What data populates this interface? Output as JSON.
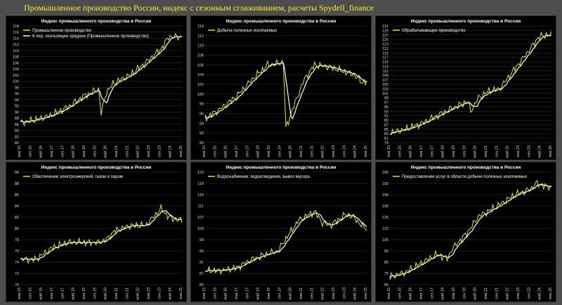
{
  "page_title": "Промышленное производство России, индекс с сезонным сглаживанием, расчеты Spydell_finance",
  "colors": {
    "raw": "#e6e21c",
    "avg": "#ffffff",
    "background": "#000000",
    "page": "#4d4d4d"
  },
  "chart_data": [
    {
      "type": "line",
      "title": "Индекс промышленного производства в России",
      "legend": [
        "Промышленное производство",
        "6 пер. скользящее среднее (Промышленное производство)"
      ],
      "legend_position": "top-left",
      "ylim": [
        80,
        118
      ],
      "yticks": [
        80,
        82,
        84,
        86,
        88,
        90,
        92,
        94,
        96,
        98,
        100,
        102,
        104,
        106,
        108,
        110,
        112,
        114,
        116,
        118
      ],
      "xticks": [
        "янв.15",
        "сен.15",
        "май.16",
        "янв.17",
        "сен.17",
        "май.18",
        "янв.19",
        "сен.19",
        "май.20",
        "янв.21",
        "сен.21",
        "май.22",
        "янв.23",
        "сен.23",
        "май.24",
        "янв.25"
      ],
      "keypoints": [
        [
          0,
          86.5
        ],
        [
          12,
          87.5
        ],
        [
          24,
          89
        ],
        [
          36,
          91.5
        ],
        [
          48,
          95
        ],
        [
          60,
          97.5
        ],
        [
          62,
          89.5
        ],
        [
          66,
          96.5
        ],
        [
          72,
          99.5
        ],
        [
          84,
          102
        ],
        [
          96,
          106
        ],
        [
          108,
          110.5
        ],
        [
          114,
          114.5
        ],
        [
          120,
          114.5
        ],
        [
          124,
          114.5
        ]
      ]
    },
    {
      "type": "line",
      "title": "Индекс промышленного производства в России",
      "legend": [
        "Добыча полезных ископаемых"
      ],
      "legend_position": "top-left",
      "ylim": [
        90,
        114
      ],
      "yticks": [
        90,
        92,
        94,
        96,
        98,
        100,
        102,
        104,
        106,
        108,
        110,
        112,
        114
      ],
      "xticks": [
        "янв.15",
        "сен.15",
        "май.16",
        "янв.17",
        "сен.17",
        "май.18",
        "янв.19",
        "сен.19",
        "май.20",
        "янв.21",
        "сен.21",
        "май.22",
        "янв.23",
        "сен.23",
        "май.24",
        "янв.25"
      ],
      "keypoints": [
        [
          0,
          95
        ],
        [
          12,
          97
        ],
        [
          24,
          99.5
        ],
        [
          36,
          103
        ],
        [
          48,
          106
        ],
        [
          60,
          106.5
        ],
        [
          62,
          93
        ],
        [
          68,
          97.5
        ],
        [
          76,
          103
        ],
        [
          84,
          106
        ],
        [
          96,
          105.5
        ],
        [
          108,
          104.5
        ],
        [
          114,
          104
        ],
        [
          120,
          102.5
        ],
        [
          124,
          102.5
        ]
      ]
    },
    {
      "type": "line",
      "title": "Индекс промышленного производства в России",
      "legend": [
        "Обрабатывающее производство"
      ],
      "legend_position": "top-left",
      "ylim": [
        79,
        131
      ],
      "yticks": [
        79,
        81,
        83,
        85,
        87,
        89,
        91,
        93,
        95,
        97,
        99,
        101,
        103,
        105,
        107,
        109,
        111,
        113,
        115,
        117,
        119,
        121,
        123,
        125,
        127,
        129,
        131
      ],
      "xticks": [
        "янв.15",
        "сен.15",
        "май.16",
        "янв.17",
        "сен.17",
        "май.18",
        "янв.19",
        "сен.19",
        "май.20",
        "янв.21",
        "сен.21",
        "май.22",
        "янв.23",
        "сен.23",
        "май.24",
        "янв.25"
      ],
      "keypoints": [
        [
          0,
          83.5
        ],
        [
          12,
          85
        ],
        [
          24,
          87.5
        ],
        [
          36,
          91
        ],
        [
          48,
          94.5
        ],
        [
          60,
          97.5
        ],
        [
          62,
          93
        ],
        [
          68,
          99
        ],
        [
          76,
          102
        ],
        [
          84,
          103
        ],
        [
          96,
          112
        ],
        [
          108,
          121
        ],
        [
          114,
          126
        ],
        [
          120,
          127
        ],
        [
          124,
          127
        ]
      ]
    },
    {
      "type": "line",
      "title": "Индекс промышленного производства в России",
      "legend": [
        "Обеспечение электроэнергией, газом и паром"
      ],
      "legend_position": "top-left",
      "ylim": [
        70,
        90
      ],
      "yticks": [
        70,
        72,
        74,
        76,
        78,
        80,
        82,
        84,
        86,
        88,
        90
      ],
      "xticks": [
        "янв.15",
        "сен.15",
        "май.16",
        "янв.17",
        "сен.17",
        "май.18",
        "янв.19",
        "сен.19",
        "май.20",
        "янв.21",
        "сен.21",
        "май.22",
        "янв.23",
        "сен.23",
        "май.24",
        "янв.25"
      ],
      "keypoints": [
        [
          0,
          74.5
        ],
        [
          12,
          74.5
        ],
        [
          24,
          76.5
        ],
        [
          36,
          77.5
        ],
        [
          48,
          77.5
        ],
        [
          60,
          77.5
        ],
        [
          66,
          78
        ],
        [
          72,
          79.5
        ],
        [
          84,
          80.5
        ],
        [
          96,
          80.5
        ],
        [
          106,
          83
        ],
        [
          108,
          83.5
        ],
        [
          114,
          82
        ],
        [
          120,
          81.5
        ],
        [
          124,
          81.5
        ]
      ]
    },
    {
      "type": "line",
      "title": "Индекс промышленного производства в России",
      "legend": [
        "Водоснабжение; водоотведение, вывоз мусора"
      ],
      "legend_position": "top-left",
      "ylim": [
        83,
        123
      ],
      "yticks": [
        83,
        87,
        91,
        95,
        99,
        103,
        107,
        111,
        115,
        119,
        123
      ],
      "xticks": [
        "янв.15",
        "сен.15",
        "май.16",
        "янв.17",
        "сен.17",
        "май.18",
        "янв.19",
        "сен.19",
        "май.20",
        "янв.21",
        "сен.21",
        "май.22",
        "янв.23",
        "сен.23",
        "май.24",
        "янв.25"
      ],
      "keypoints": [
        [
          0,
          88
        ],
        [
          12,
          88
        ],
        [
          24,
          89
        ],
        [
          36,
          92
        ],
        [
          48,
          94
        ],
        [
          56,
          95
        ],
        [
          60,
          98
        ],
        [
          72,
          106
        ],
        [
          84,
          109
        ],
        [
          90,
          105
        ],
        [
          96,
          104
        ],
        [
          108,
          108
        ],
        [
          114,
          107
        ],
        [
          120,
          104
        ],
        [
          124,
          103
        ]
      ]
    },
    {
      "type": "line",
      "title": "Индекс промышленного производства в России",
      "legend": [
        "Предоставление услуг в области добычи полезных ископаемых"
      ],
      "legend_position": "top-left",
      "ylim": [
        65,
        165
      ],
      "yticks": [
        65,
        75,
        85,
        95,
        105,
        115,
        125,
        135,
        145,
        155,
        165
      ],
      "xticks": [
        "янв.15",
        "сен.15",
        "май.16",
        "янв.17",
        "сен.17",
        "май.18",
        "янв.19",
        "сен.19",
        "май.20",
        "янв.21",
        "сен.21",
        "май.22",
        "янв.23",
        "сен.23",
        "май.24",
        "янв.25"
      ],
      "keypoints": [
        [
          0,
          72
        ],
        [
          12,
          76
        ],
        [
          24,
          84
        ],
        [
          36,
          92
        ],
        [
          44,
          88
        ],
        [
          48,
          97
        ],
        [
          60,
          112
        ],
        [
          68,
          126
        ],
        [
          72,
          128
        ],
        [
          84,
          136
        ],
        [
          96,
          145
        ],
        [
          108,
          150
        ],
        [
          112,
          155
        ],
        [
          120,
          152
        ],
        [
          124,
          152
        ]
      ]
    }
  ]
}
